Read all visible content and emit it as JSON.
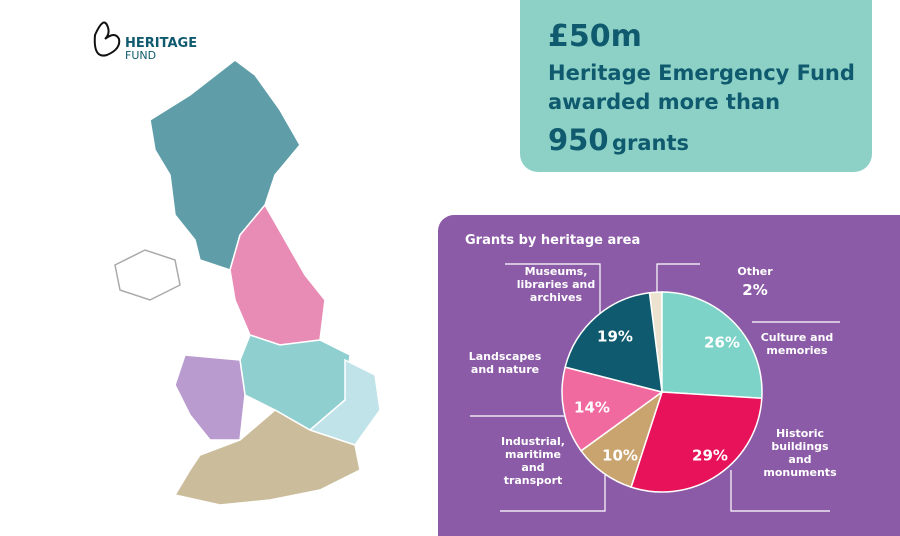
{
  "logo": {
    "line1": "HERITAGE",
    "line2": "FUND"
  },
  "headline": {
    "amount": "£50m",
    "line1": "Heritage Emergency Fund",
    "line2": "awarded more than",
    "count": "950",
    "unit": "grants"
  },
  "chart_data": {
    "type": "pie",
    "title": "Grants by heritage area",
    "categories": [
      "Other",
      "Culture and memories",
      "Historic buildings and monuments",
      "Industrial, maritime and transport",
      "Landscapes and nature",
      "Museums, libraries and archives"
    ],
    "values": [
      2,
      26,
      29,
      10,
      14,
      19
    ],
    "value_labels": [
      "2%",
      "26%",
      "29%",
      "10%",
      "14%",
      "19%"
    ],
    "colors": [
      "#ece2cf",
      "#7dd3c8",
      "#e8125a",
      "#c9a46e",
      "#f06aa0",
      "#0f5a6e"
    ]
  }
}
